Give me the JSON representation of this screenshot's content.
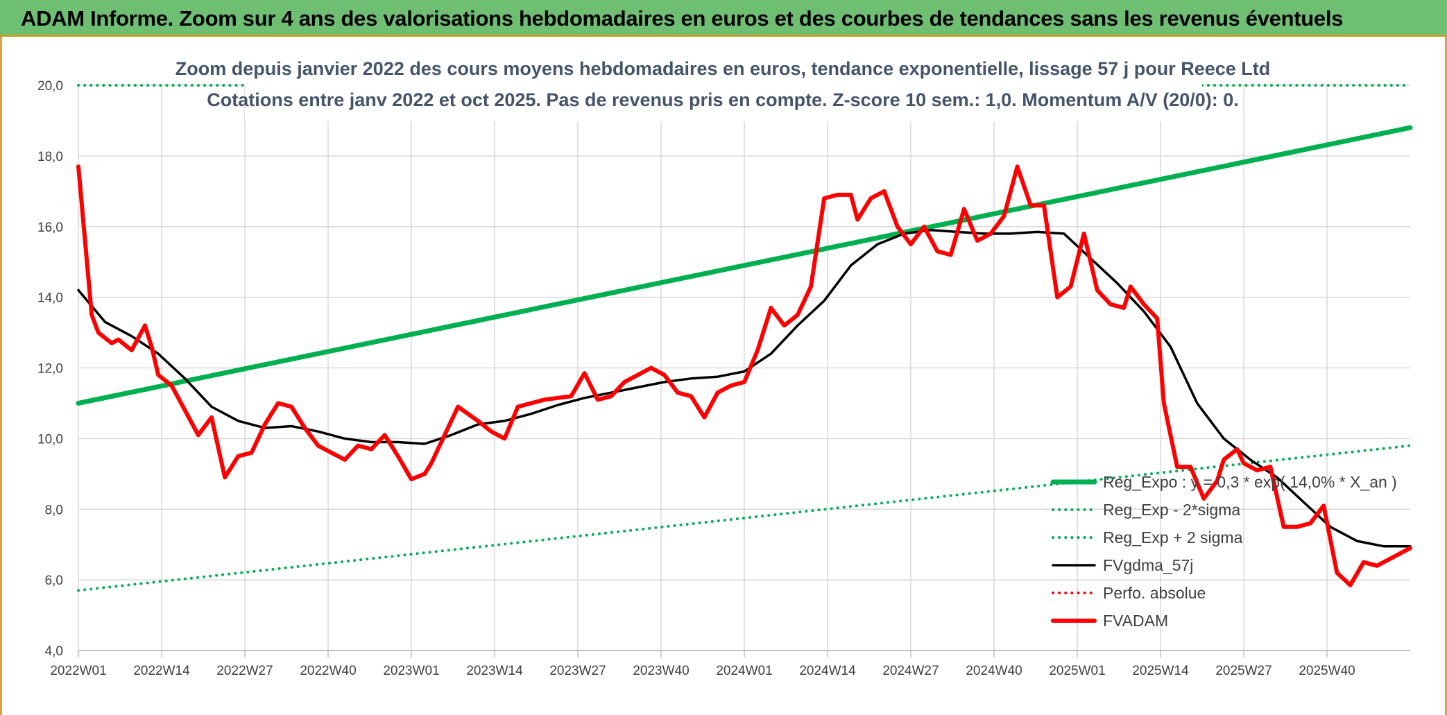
{
  "banner": {
    "title": "ADAM Informe. Zoom sur 4 ans des valorisations hebdomadaires en euros et des courbes de tendances sans les revenus éventuels"
  },
  "chart_data": {
    "type": "line",
    "title": "Zoom depuis janvier 2022 des cours moyens hebdomadaires en euros, tendance exponentielle, lissage 57 j pour Reece Ltd",
    "subtitle": "Cotations entre janv 2022 et oct 2025. Pas de revenus pris en compte. Z-score 10 sem.: 1,0. Momentum A/V (20/0): 0.",
    "x_ticks": [
      "2022W01",
      "2022W14",
      "2022W27",
      "2022W40",
      "2023W01",
      "2023W14",
      "2023W27",
      "2023W40",
      "2024W01",
      "2024W14",
      "2024W27",
      "2024W40",
      "2025W01",
      "2025W14",
      "2025W27",
      "2025W40"
    ],
    "y_ticks": [
      "4,0",
      "6,0",
      "8,0",
      "10,0",
      "12,0",
      "14,0",
      "16,0",
      "18,0",
      "20,0"
    ],
    "ylim": [
      4,
      20
    ],
    "x_range_weeks": [
      0,
      200
    ],
    "grid": true,
    "legend_position": "bottom-right",
    "series": [
      {
        "name": "Reg_Expo : y = 0,3 * exp( 14,0% *  X_an )",
        "color": "#00b050",
        "style": "solid",
        "width": 7,
        "x": [
          0,
          200
        ],
        "y": [
          11.0,
          18.8
        ]
      },
      {
        "name": "Reg_Exp - 2*sigma",
        "color": "#00b050",
        "style": "dotted",
        "width": 4,
        "x": [
          0,
          200
        ],
        "y": [
          5.7,
          9.8
        ]
      },
      {
        "name": "Reg_Exp + 2 sigma",
        "color": "#00b050",
        "style": "dotted",
        "width": 4,
        "x": [
          0,
          200
        ],
        "y": [
          20.0,
          20.0
        ]
      },
      {
        "name": "FVgdma_57j",
        "color": "#000000",
        "style": "solid",
        "width": 3.5,
        "x": [
          0,
          4,
          8,
          12,
          16,
          20,
          24,
          28,
          32,
          36,
          40,
          44,
          48,
          52,
          56,
          60,
          64,
          68,
          72,
          76,
          80,
          84,
          88,
          92,
          96,
          100,
          104,
          108,
          112,
          116,
          120,
          124,
          128,
          132,
          136,
          140,
          144,
          148,
          152,
          156,
          160,
          164,
          168,
          172,
          176,
          180,
          184,
          188,
          192,
          196,
          200
        ],
        "y": [
          14.2,
          13.3,
          12.9,
          12.4,
          11.7,
          10.9,
          10.5,
          10.3,
          10.35,
          10.2,
          10.0,
          9.9,
          9.9,
          9.85,
          10.1,
          10.4,
          10.5,
          10.7,
          10.95,
          11.15,
          11.3,
          11.45,
          11.6,
          11.7,
          11.75,
          11.9,
          12.4,
          13.2,
          13.9,
          14.9,
          15.5,
          15.8,
          15.9,
          15.85,
          15.8,
          15.8,
          15.85,
          15.8,
          15.1,
          14.4,
          13.6,
          12.6,
          11.0,
          10.0,
          9.4,
          8.9,
          8.2,
          7.5,
          7.1,
          6.95,
          6.95
        ]
      },
      {
        "name": "Perfo. absolue",
        "color": "#ff0000",
        "style": "dotted",
        "width": 4,
        "x": [],
        "y": []
      },
      {
        "name": "FVADAM",
        "color": "#ff0000",
        "style": "solid",
        "width": 6,
        "x": [
          0,
          2,
          3,
          5,
          6,
          8,
          10,
          11,
          12,
          14,
          16,
          18,
          20,
          22,
          23,
          24,
          26,
          28,
          30,
          32,
          34,
          36,
          38,
          40,
          42,
          44,
          46,
          48,
          50,
          52,
          53,
          55,
          57,
          60,
          62,
          64,
          66,
          68,
          70,
          72,
          74,
          76,
          78,
          80,
          82,
          84,
          86,
          88,
          90,
          92,
          94,
          96,
          98,
          100,
          102,
          104,
          106,
          108,
          110,
          112,
          114,
          116,
          117,
          119,
          121,
          123,
          125,
          127,
          129,
          131,
          133,
          135,
          137,
          139,
          141,
          143,
          145,
          147,
          149,
          151,
          153,
          155,
          157,
          158,
          160,
          162,
          163,
          165,
          167,
          169,
          171,
          172,
          174,
          175,
          177,
          179,
          181,
          183,
          185,
          187,
          189,
          191,
          193,
          195,
          197,
          200
        ],
        "y": [
          17.7,
          13.5,
          13.0,
          12.7,
          12.8,
          12.5,
          13.2,
          12.6,
          11.8,
          11.5,
          10.8,
          10.1,
          10.6,
          8.9,
          9.2,
          9.5,
          9.6,
          10.4,
          11.0,
          10.9,
          10.3,
          9.8,
          9.6,
          9.4,
          9.8,
          9.7,
          10.1,
          9.5,
          8.85,
          9.0,
          9.3,
          10.1,
          10.9,
          10.5,
          10.2,
          10.0,
          10.9,
          11.0,
          11.1,
          11.15,
          11.2,
          11.85,
          11.1,
          11.2,
          11.6,
          11.8,
          12.0,
          11.8,
          11.3,
          11.2,
          10.6,
          11.3,
          11.5,
          11.6,
          12.5,
          13.7,
          13.2,
          13.5,
          14.3,
          16.8,
          16.9,
          16.9,
          16.2,
          16.8,
          17.0,
          16.0,
          15.5,
          16.0,
          15.3,
          15.2,
          16.5,
          15.6,
          15.8,
          16.3,
          17.7,
          16.6,
          16.6,
          14.0,
          14.3,
          15.8,
          14.2,
          13.8,
          13.7,
          14.3,
          13.8,
          13.4,
          11.0,
          9.2,
          9.2,
          8.3,
          8.8,
          9.4,
          9.7,
          9.3,
          9.1,
          9.2,
          7.5,
          7.5,
          7.6,
          8.1,
          6.2,
          5.85,
          6.5,
          6.4,
          6.6,
          6.9
        ]
      }
    ]
  }
}
